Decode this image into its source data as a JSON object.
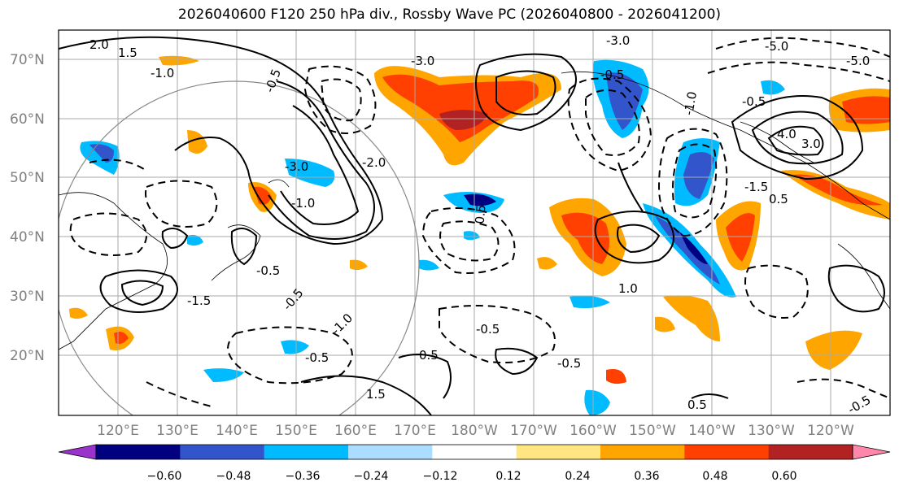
{
  "title": "2026040600 F120 250 hPa div., Rossby Wave PC (2026040800 - 2026041200)",
  "latitude_labels": [
    "70°N",
    "60°N",
    "50°N",
    "40°N",
    "30°N",
    "20°N"
  ],
  "longitude_labels": [
    "120°E",
    "130°E",
    "140°E",
    "150°E",
    "160°E",
    "170°E",
    "180°W",
    "170°W",
    "160°W",
    "150°W",
    "140°W",
    "130°W",
    "120°W"
  ],
  "colorbar": {
    "colors": [
      "#9933cc",
      "#000080",
      "#3355cc",
      "#00bbff",
      "#aaddff",
      "#ffffff",
      "#ffe680",
      "#ffa500",
      "#ff4000",
      "#b22222",
      "#ff88aa"
    ],
    "tick_labels": [
      "−0.60",
      "−0.48",
      "−0.36",
      "−0.24",
      "−0.12",
      "0.12",
      "0.24",
      "0.36",
      "0.48",
      "0.60"
    ]
  },
  "contour_labels": [
    "2.0",
    "1.5",
    "-1.0",
    "-0.5",
    "-3.0",
    "-3.0",
    "-5.0",
    "-5.0",
    "-0.5",
    "-1.0",
    "-0.5",
    "4.0",
    "3.0",
    "-3.0",
    "-2.0",
    "-1.0",
    "0.5",
    "-0.5",
    "-1.5",
    "-0.5",
    "-1.0",
    "0.5",
    "1.5",
    "-0.5",
    "-0.5",
    "-0.5",
    "1.0",
    "0.5",
    "-0.5",
    "-1.5",
    "0.5"
  ]
}
